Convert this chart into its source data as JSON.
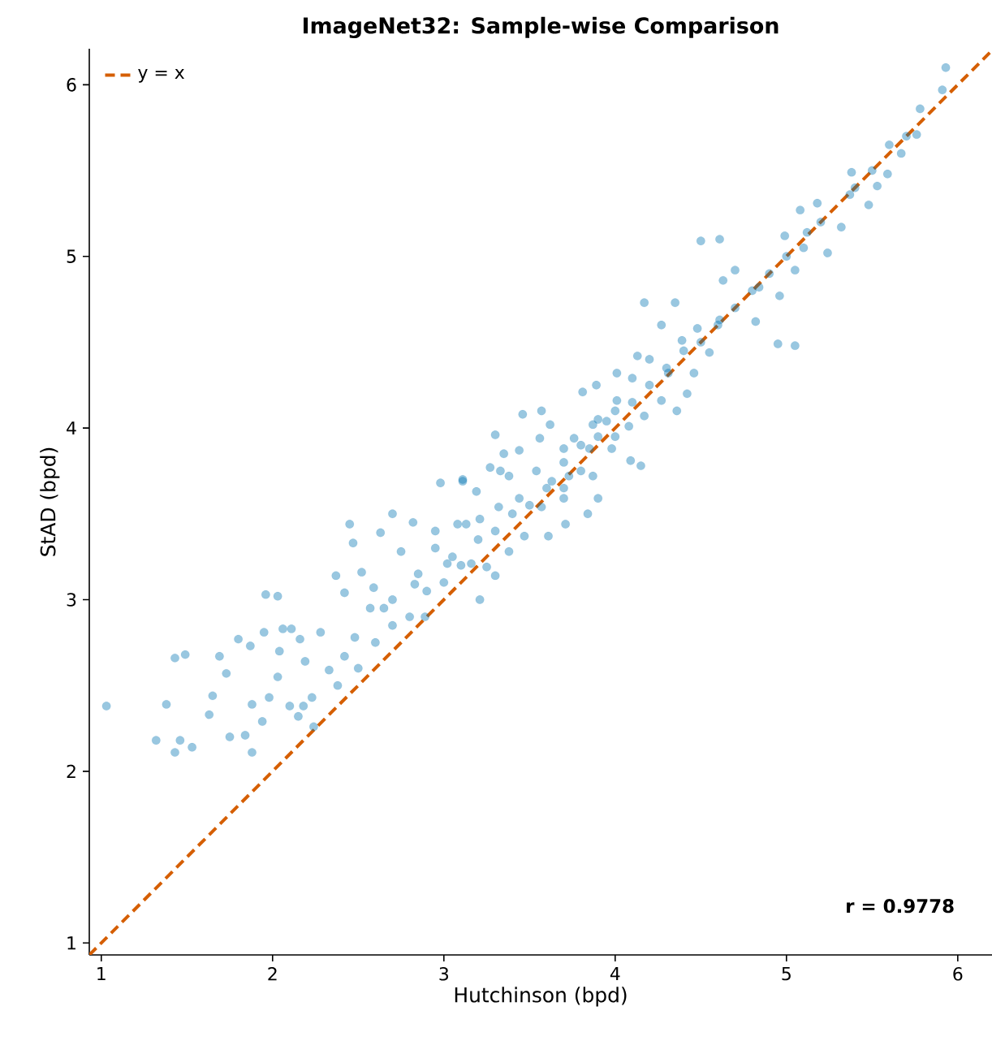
{
  "chart_data": {
    "type": "scatter",
    "title": "ImageNet32: Sample-wise Comparison",
    "xlabel": "Hutchinson (bpd)",
    "ylabel": "StAD (bpd)",
    "xlim": [
      0.93,
      6.2
    ],
    "ylim": [
      0.93,
      6.21
    ],
    "xticks": [
      1,
      2,
      3,
      4,
      5,
      6
    ],
    "yticks": [
      1,
      2,
      3,
      4,
      5,
      6
    ],
    "grid": false,
    "legend": "top left",
    "annotations": [
      "r = 0.9778"
    ],
    "series": [
      {
        "color": "#0072b2",
        "marker": "circle",
        "x": [
          1.03,
          1.32,
          1.38,
          1.43,
          1.46,
          1.53,
          1.43,
          1.49,
          1.63,
          1.69,
          1.73,
          1.65,
          1.75,
          1.84,
          1.8,
          1.88,
          1.87,
          1.96,
          2.03,
          1.95,
          1.88,
          1.94,
          1.98,
          2.04,
          2.06,
          2.11,
          2.03,
          2.1,
          2.15,
          2.16,
          2.18,
          2.19,
          2.23,
          2.24,
          2.28,
          2.37,
          2.42,
          2.33,
          2.38,
          2.45,
          2.47,
          2.42,
          2.52,
          2.48,
          2.57,
          2.63,
          2.59,
          2.7,
          2.7,
          2.75,
          2.82,
          2.83,
          2.89,
          2.95,
          3.02,
          2.98,
          3.11,
          3.08,
          3.21,
          3.3,
          3.33,
          2.5,
          2.6,
          2.7,
          2.8,
          2.9,
          3.0,
          3.05,
          3.1,
          2.85,
          2.65,
          3.2,
          2.95,
          5.93,
          5.91,
          5.78,
          5.76,
          5.67,
          5.59,
          5.53,
          5.48,
          5.38,
          5.37,
          5.32,
          5.24,
          5.18,
          5.08,
          4.5,
          4.61,
          5.12,
          5.05,
          4.99,
          4.95,
          5.05,
          4.84,
          4.96,
          4.82,
          4.7,
          4.63,
          4.35,
          4.48,
          4.61,
          4.27,
          4.39,
          4.55,
          4.13,
          4.31,
          4.46,
          4.42,
          4.27,
          4.01,
          4.1,
          4.17,
          4.36,
          3.81,
          3.89,
          4.01,
          4.08,
          3.95,
          4.15,
          3.87,
          3.76,
          3.85,
          3.98,
          4.09,
          3.57,
          3.62,
          3.46,
          3.56,
          3.7,
          3.8,
          3.87,
          3.9,
          3.84,
          3.3,
          3.35,
          3.44,
          3.27,
          3.38,
          3.54,
          3.63,
          3.7,
          3.57,
          3.44,
          3.32,
          3.19,
          3.11,
          3.21,
          3.13,
          3.47,
          3.61,
          3.71,
          3.38,
          3.25,
          3.16,
          3.73,
          4.17,
          3.6,
          3.7,
          3.8,
          3.9,
          4.0,
          4.1,
          4.2,
          4.3,
          4.4,
          4.5,
          4.6,
          3.5,
          3.4,
          3.3,
          4.2,
          4.0,
          3.9,
          3.7,
          4.7,
          4.8,
          4.9,
          5.0,
          5.1,
          5.2,
          5.4,
          5.5,
          5.6,
          5.7
        ],
        "values": [
          2.38,
          2.18,
          2.39,
          2.11,
          2.18,
          2.14,
          2.66,
          2.68,
          2.33,
          2.67,
          2.57,
          2.44,
          2.2,
          2.21,
          2.77,
          2.11,
          2.73,
          3.03,
          3.02,
          2.81,
          2.39,
          2.29,
          2.43,
          2.7,
          2.83,
          2.83,
          2.55,
          2.38,
          2.32,
          2.77,
          2.38,
          2.64,
          2.43,
          2.26,
          2.81,
          3.14,
          3.04,
          2.59,
          2.5,
          3.44,
          3.33,
          2.67,
          3.16,
          2.78,
          2.95,
          3.39,
          3.07,
          3.5,
          3.0,
          3.28,
          3.45,
          3.09,
          2.9,
          3.3,
          3.21,
          3.68,
          3.7,
          3.44,
          3.0,
          3.14,
          3.75,
          2.6,
          2.75,
          2.85,
          2.9,
          3.05,
          3.1,
          3.25,
          3.2,
          3.15,
          2.95,
          3.35,
          3.4,
          6.1,
          5.97,
          5.86,
          5.71,
          5.6,
          5.48,
          5.41,
          5.3,
          5.49,
          5.36,
          5.17,
          5.02,
          5.31,
          5.27,
          5.09,
          5.1,
          5.14,
          4.92,
          5.12,
          4.49,
          4.48,
          4.82,
          4.77,
          4.62,
          4.92,
          4.86,
          4.73,
          4.58,
          4.63,
          4.6,
          4.51,
          4.44,
          4.42,
          4.32,
          4.32,
          4.2,
          4.16,
          4.32,
          4.29,
          4.07,
          4.1,
          4.21,
          4.25,
          4.16,
          4.01,
          4.04,
          3.78,
          4.02,
          3.94,
          3.88,
          3.88,
          3.81,
          4.1,
          4.02,
          4.08,
          3.94,
          3.88,
          3.75,
          3.72,
          3.59,
          3.5,
          3.96,
          3.85,
          3.87,
          3.77,
          3.72,
          3.75,
          3.69,
          3.59,
          3.54,
          3.59,
          3.54,
          3.63,
          3.69,
          3.47,
          3.44,
          3.37,
          3.37,
          3.44,
          3.28,
          3.19,
          3.21,
          3.72,
          4.73,
          3.65,
          3.8,
          3.9,
          3.95,
          4.1,
          4.15,
          4.25,
          4.35,
          4.45,
          4.5,
          4.6,
          3.55,
          3.5,
          3.4,
          4.4,
          3.95,
          4.05,
          3.65,
          4.7,
          4.8,
          4.9,
          5.0,
          5.05,
          5.2,
          5.4,
          5.5,
          5.65,
          5.7
        ]
      },
      {
        "type": "line",
        "name": "y = x",
        "color": "#d55e00",
        "line_style": "dashed",
        "marker": "none",
        "x": [
          0.93,
          6.2
        ],
        "values": [
          0.93,
          6.2
        ]
      }
    ]
  }
}
